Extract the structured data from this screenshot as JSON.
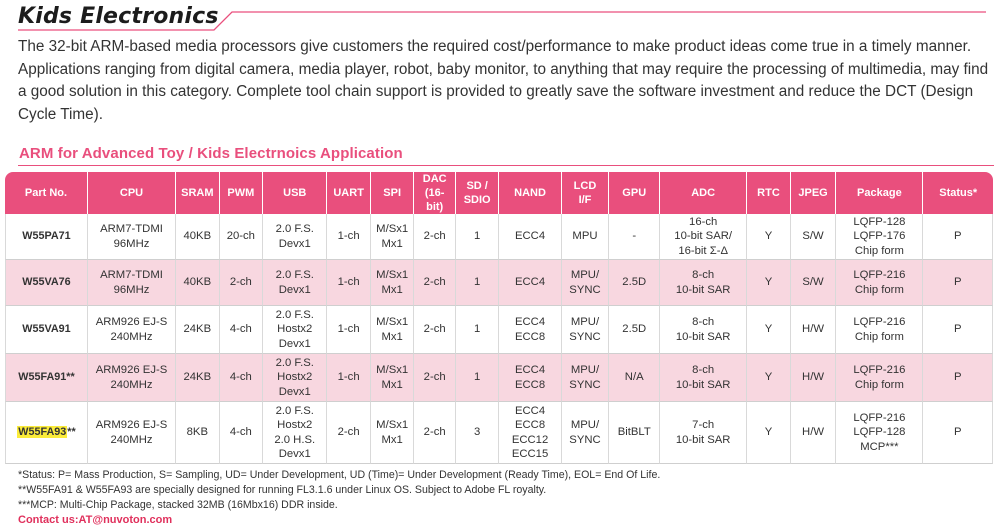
{
  "page": {
    "title": "Kids Electronics",
    "intro": "The 32-bit ARM-based media processors give customers the required cost/performance to make product ideas come true in a timely manner. Applications ranging from digital camera, media player, robot, baby monitor, to anything that may require the processing of multimedia, may find a good solution in this category. Complete tool chain support is provided to greatly save the software investment and reduce the DCT (Design Cycle Time).",
    "section_title": "ARM for Advanced Toy / Kids Electrnoics Application"
  },
  "table": {
    "headers": [
      [
        "Part No."
      ],
      [
        "CPU"
      ],
      [
        "SRAM"
      ],
      [
        "PWM"
      ],
      [
        "USB"
      ],
      [
        "UART"
      ],
      [
        "SPI"
      ],
      [
        "DAC",
        "(16-bit)"
      ],
      [
        "SD /",
        "SDIO"
      ],
      [
        "NAND"
      ],
      [
        "LCD",
        "I/F"
      ],
      [
        "GPU"
      ],
      [
        "ADC"
      ],
      [
        "RTC"
      ],
      [
        "JPEG"
      ],
      [
        "Package"
      ],
      [
        "Status*"
      ]
    ],
    "rows": [
      {
        "part": "W55PA71",
        "cells": [
          [
            "ARM7-TDMI",
            "96MHz"
          ],
          [
            "40KB"
          ],
          [
            "20-ch"
          ],
          [
            "2.0 F.S.",
            "Devx1"
          ],
          [
            "1-ch"
          ],
          [
            "M/Sx1",
            "Mx1"
          ],
          [
            "2-ch"
          ],
          [
            "1"
          ],
          [
            "ECC4"
          ],
          [
            "MPU"
          ],
          [
            "-"
          ],
          [
            "16-ch",
            "10-bit SAR/",
            "16-bit Σ-Δ"
          ],
          [
            "Y"
          ],
          [
            "S/W"
          ],
          [
            "LQFP-128",
            "LQFP-176",
            "Chip form"
          ],
          [
            "P"
          ]
        ]
      },
      {
        "part": "W55VA76",
        "cells": [
          [
            "ARM7-TDMI",
            "96MHz"
          ],
          [
            "40KB"
          ],
          [
            "2-ch"
          ],
          [
            "2.0 F.S.",
            "Devx1"
          ],
          [
            "1-ch"
          ],
          [
            "M/Sx1",
            "Mx1"
          ],
          [
            "2-ch"
          ],
          [
            "1"
          ],
          [
            "ECC4"
          ],
          [
            "MPU/",
            "SYNC"
          ],
          [
            "2.5D"
          ],
          [
            "8-ch",
            "10-bit SAR"
          ],
          [
            "Y"
          ],
          [
            "S/W"
          ],
          [
            "LQFP-216",
            "Chip form"
          ],
          [
            "P"
          ]
        ]
      },
      {
        "part": "W55VA91",
        "cells": [
          [
            "ARM926 EJ-S",
            "240MHz"
          ],
          [
            "24KB"
          ],
          [
            "4-ch"
          ],
          [
            "2.0 F.S.",
            "Hostx2",
            "Devx1"
          ],
          [
            "1-ch"
          ],
          [
            "M/Sx1",
            "Mx1"
          ],
          [
            "2-ch"
          ],
          [
            "1"
          ],
          [
            "ECC4",
            "ECC8"
          ],
          [
            "MPU/",
            "SYNC"
          ],
          [
            "2.5D"
          ],
          [
            "8-ch",
            "10-bit SAR"
          ],
          [
            "Y"
          ],
          [
            "H/W"
          ],
          [
            "LQFP-216",
            "Chip form"
          ],
          [
            "P"
          ]
        ]
      },
      {
        "part": "W55FA91**",
        "cells": [
          [
            "ARM926 EJ-S",
            "240MHz"
          ],
          [
            "24KB"
          ],
          [
            "4-ch"
          ],
          [
            "2.0 F.S.",
            "Hostx2",
            "Devx1"
          ],
          [
            "1-ch"
          ],
          [
            "M/Sx1",
            "Mx1"
          ],
          [
            "2-ch"
          ],
          [
            "1"
          ],
          [
            "ECC4",
            "ECC8"
          ],
          [
            "MPU/",
            "SYNC"
          ],
          [
            "N/A"
          ],
          [
            "8-ch",
            "10-bit SAR"
          ],
          [
            "Y"
          ],
          [
            "H/W"
          ],
          [
            "LQFP-216",
            "Chip form"
          ],
          [
            "P"
          ]
        ]
      },
      {
        "part_highlight": "W55FA93",
        "part_suffix": "**",
        "cells": [
          [
            "ARM926 EJ-S",
            "240MHz"
          ],
          [
            "8KB"
          ],
          [
            "4-ch"
          ],
          [
            "2.0 F.S.",
            "Hostx2",
            "2.0 H.S.",
            "Devx1"
          ],
          [
            "2-ch"
          ],
          [
            "M/Sx1",
            "Mx1"
          ],
          [
            "2-ch"
          ],
          [
            "3"
          ],
          [
            "ECC4",
            "ECC8",
            "ECC12",
            "ECC15"
          ],
          [
            "MPU/",
            "SYNC"
          ],
          [
            "BitBLT"
          ],
          [
            "7-ch",
            "10-bit SAR"
          ],
          [
            "Y"
          ],
          [
            "H/W"
          ],
          [
            "LQFP-216",
            "LQFP-128",
            "MCP***"
          ],
          [
            "P"
          ]
        ]
      }
    ]
  },
  "notes": {
    "status": "*Status: P= Mass Production, S= Sampling, UD= Under Development, UD (Time)= Under Development (Ready Time), EOL= End Of Life.",
    "fl": "**W55FA91 & W55FA93 are specially designed for running FL3.1.6 under Linux OS. Subject to Adobe FL royalty.",
    "mcp": "***MCP: Multi-Chip Package, stacked 32MB (16Mbx16) DDR inside.",
    "contact": "Contact us:AT@nuvoton.com"
  },
  "colors": {
    "accent": "#e94f7d",
    "row_alt": "#f8d7e0",
    "highlight": "#fbec3a"
  }
}
